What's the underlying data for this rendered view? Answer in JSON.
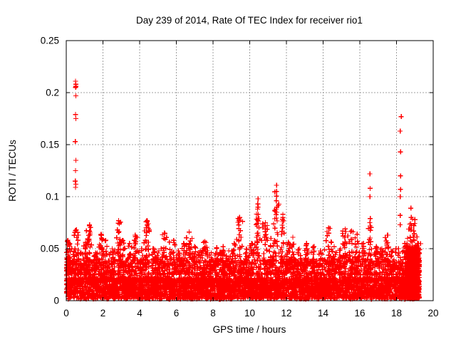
{
  "window": {
    "background": "#ffffff"
  },
  "chart_data": {
    "type": "scatter",
    "title": "Day 239 of 2014, Rate Of TEC Index for receiver rio1",
    "xlabel": "GPS time / hours",
    "ylabel": "ROTI / TECUs",
    "xlim": [
      0,
      20
    ],
    "ylim": [
      0,
      0.25
    ],
    "x_tick_labels": [
      "0",
      "2",
      "4",
      "6",
      "8",
      "10",
      "12",
      "14",
      "16",
      "18",
      "20"
    ],
    "y_tick_labels": [
      "0",
      "0.05",
      "0.1",
      "0.15",
      "0.2",
      "0.25"
    ],
    "grid": "dashed",
    "legend": "none",
    "marker": "plus",
    "colors": {
      "points": "#ff0000",
      "grid": "#a0a0a0",
      "axis": "#000000",
      "text": "#000000"
    },
    "noise_band": {
      "x_start": 0,
      "x_end": 19.25,
      "floor": 0.0015,
      "dense_max": 0.022,
      "mid_max": 0.04,
      "typical_spike_max": 0.042,
      "points": 5200
    },
    "end_burst": {
      "x_start": 18.55,
      "x_end": 19.25,
      "max": 0.052,
      "points": 450
    },
    "peaks": [
      [
        0.08,
        0.058
      ],
      [
        0.15,
        0.055
      ],
      [
        0.3,
        0.05
      ],
      [
        0.55,
        0.068
      ],
      [
        0.8,
        0.046
      ],
      [
        1.05,
        0.056
      ],
      [
        1.27,
        0.073
      ],
      [
        1.6,
        0.046
      ],
      [
        1.9,
        0.064
      ],
      [
        2.15,
        0.058
      ],
      [
        2.5,
        0.05
      ],
      [
        2.85,
        0.077
      ],
      [
        3.05,
        0.058
      ],
      [
        3.45,
        0.055
      ],
      [
        3.75,
        0.063
      ],
      [
        4.1,
        0.05
      ],
      [
        4.4,
        0.077
      ],
      [
        4.75,
        0.05
      ],
      [
        5.05,
        0.048
      ],
      [
        5.35,
        0.065
      ],
      [
        5.85,
        0.058
      ],
      [
        6.1,
        0.048
      ],
      [
        6.4,
        0.055
      ],
      [
        6.7,
        0.066
      ],
      [
        7.0,
        0.052
      ],
      [
        7.3,
        0.048
      ],
      [
        7.55,
        0.057
      ],
      [
        7.9,
        0.046
      ],
      [
        8.2,
        0.051
      ],
      [
        8.55,
        0.052
      ],
      [
        8.85,
        0.048
      ],
      [
        9.15,
        0.055
      ],
      [
        9.45,
        0.08
      ],
      [
        9.8,
        0.05
      ],
      [
        10.1,
        0.055
      ],
      [
        10.45,
        0.09
      ],
      [
        10.85,
        0.075
      ],
      [
        11.15,
        0.06
      ],
      [
        11.46,
        0.105
      ],
      [
        11.8,
        0.08
      ],
      [
        12.1,
        0.056
      ],
      [
        12.35,
        0.061
      ],
      [
        12.7,
        0.05
      ],
      [
        13.1,
        0.055
      ],
      [
        13.5,
        0.052
      ],
      [
        13.85,
        0.048
      ],
      [
        14.3,
        0.07
      ],
      [
        14.6,
        0.052
      ],
      [
        14.95,
        0.05
      ],
      [
        15.2,
        0.069
      ],
      [
        15.55,
        0.067
      ],
      [
        15.85,
        0.064
      ],
      [
        16.2,
        0.055
      ],
      [
        16.55,
        0.075
      ],
      [
        16.9,
        0.052
      ],
      [
        17.2,
        0.05
      ],
      [
        17.5,
        0.063
      ],
      [
        17.8,
        0.048
      ],
      [
        18.1,
        0.05
      ],
      [
        18.45,
        0.055
      ],
      [
        18.6,
        0.06
      ],
      [
        18.8,
        0.08
      ],
      [
        19.0,
        0.078
      ],
      [
        19.15,
        0.055
      ]
    ],
    "outliers": [
      [
        0.5,
        0.211
      ],
      [
        0.52,
        0.208
      ],
      [
        0.53,
        0.206
      ],
      [
        0.51,
        0.205
      ],
      [
        0.52,
        0.197
      ],
      [
        0.5,
        0.179
      ],
      [
        0.52,
        0.175
      ],
      [
        0.49,
        0.153
      ],
      [
        0.52,
        0.135
      ],
      [
        0.5,
        0.125
      ],
      [
        0.49,
        0.115
      ],
      [
        0.52,
        0.112
      ],
      [
        0.5,
        0.109
      ],
      [
        9.42,
        0.077
      ],
      [
        10.45,
        0.098
      ],
      [
        10.44,
        0.093
      ],
      [
        10.45,
        0.083
      ],
      [
        10.46,
        0.076
      ],
      [
        11.46,
        0.111
      ],
      [
        11.45,
        0.096
      ],
      [
        11.47,
        0.09
      ],
      [
        11.44,
        0.088
      ],
      [
        11.8,
        0.083
      ],
      [
        11.81,
        0.076
      ],
      [
        11.79,
        0.07
      ],
      [
        16.55,
        0.122
      ],
      [
        16.56,
        0.108
      ],
      [
        16.55,
        0.1
      ],
      [
        16.57,
        0.079
      ],
      [
        16.57,
        0.072
      ],
      [
        17.53,
        0.063
      ],
      [
        18.26,
        0.177
      ],
      [
        18.2,
        0.163
      ],
      [
        18.22,
        0.143
      ],
      [
        18.22,
        0.12
      ],
      [
        18.22,
        0.107
      ],
      [
        18.2,
        0.1
      ],
      [
        18.2,
        0.082
      ],
      [
        18.2,
        0.073
      ],
      [
        18.78,
        0.089
      ]
    ]
  }
}
